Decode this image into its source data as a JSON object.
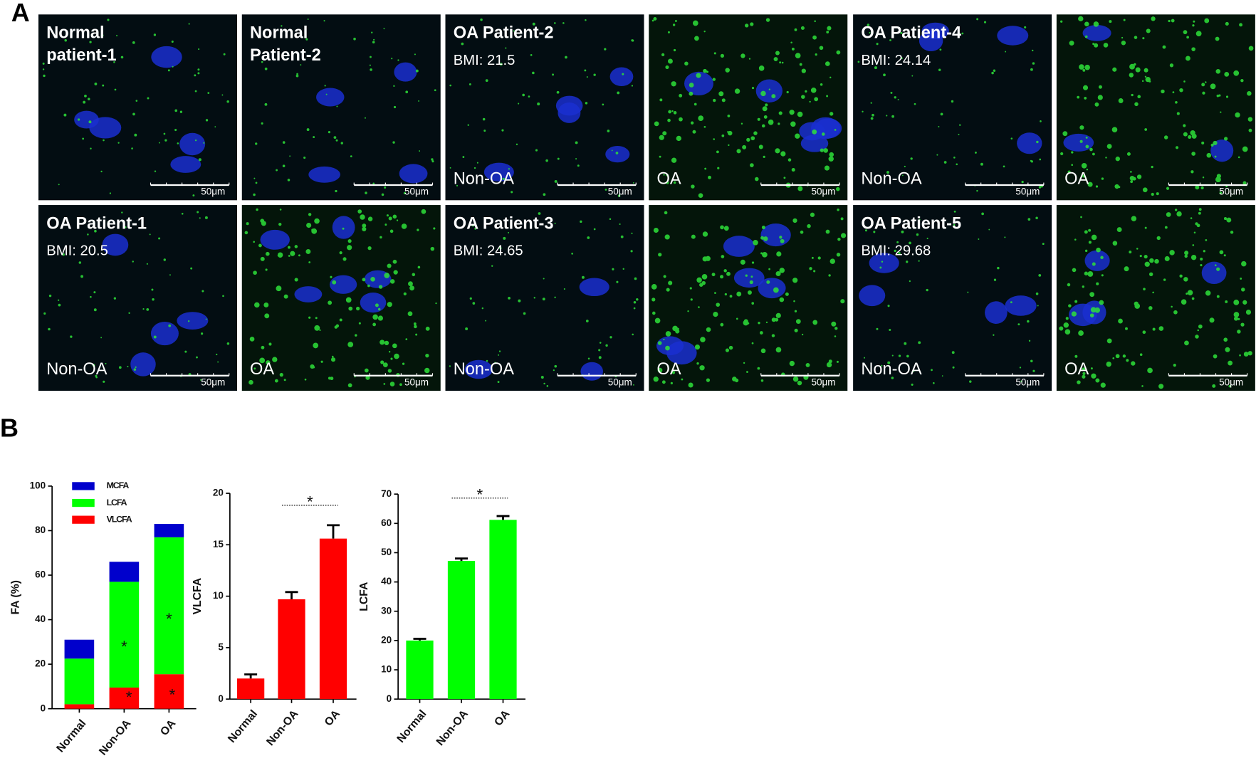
{
  "panel_labels": [
    "A",
    "B"
  ],
  "panel_a": {
    "tiles": [
      {
        "title": [
          "Normal",
          "patient-1"
        ],
        "scale": "50μm"
      },
      {
        "title": [
          "Normal",
          "Patient-2"
        ],
        "scale": "50μm"
      },
      {
        "title": [
          "OA Patient-2"
        ],
        "bmi": "BMI: 21.5",
        "group": "Non-OA",
        "scale": "50μm"
      },
      {
        "group": "OA",
        "scale": "50μm"
      },
      {
        "title": [
          "OA Patient-4"
        ],
        "bmi": "BMI: 24.14",
        "group": "Non-OA",
        "scale": "50μm"
      },
      {
        "group": "OA",
        "scale": "50μm"
      },
      {
        "title": [
          "OA Patient-1"
        ],
        "bmi": "BMI: 20.5",
        "group": "Non-OA",
        "scale": "50μm"
      },
      {
        "group": "OA",
        "scale": "50μm"
      },
      {
        "title": [
          "OA Patient-3"
        ],
        "bmi": "BMI: 24.65",
        "group": "Non-OA",
        "scale": "50μm"
      },
      {
        "group": "OA",
        "scale": "50μm"
      },
      {
        "title": [
          "OA Patient-5"
        ],
        "bmi": "BMI: 29.68",
        "group": "Non-OA",
        "scale": "50μm"
      },
      {
        "group": "OA",
        "scale": "50μm"
      }
    ]
  },
  "chart_data": [
    {
      "type": "stacked_bar",
      "ylabel": "FA (%)",
      "categories": [
        "Normal",
        "Non-OA",
        "OA"
      ],
      "series": [
        {
          "name": "VLCFA",
          "color": "#ff0000",
          "values": [
            2,
            9.5,
            15.5
          ]
        },
        {
          "name": "LCFA",
          "color": "#00ff00",
          "values": [
            20.5,
            47.5,
            61.5
          ]
        },
        {
          "name": "MCFA",
          "color": "#0000cc",
          "values": [
            8.5,
            9,
            6
          ]
        }
      ],
      "ylim": [
        0,
        100
      ],
      "yticks": [
        0,
        20,
        40,
        60,
        80,
        100
      ],
      "legend": "top-left",
      "annotations": [
        "*",
        "*",
        "*",
        "*"
      ]
    },
    {
      "type": "bar",
      "ylabel": "VLCFA",
      "categories": [
        "Normal",
        "Non-OA",
        "OA"
      ],
      "values": [
        2,
        9.7,
        15.6
      ],
      "errors": [
        0.4,
        0.7,
        1.3
      ],
      "color": "#ff0000",
      "ylim": [
        0,
        20
      ],
      "yticks": [
        0,
        5,
        10,
        15,
        20
      ],
      "annotations": [
        "*"
      ]
    },
    {
      "type": "bar",
      "ylabel": "LCFA",
      "categories": [
        "Normal",
        "Non-OA",
        "OA"
      ],
      "values": [
        20,
        47.2,
        61.2
      ],
      "errors": [
        0.6,
        0.8,
        1.3
      ],
      "color": "#00ff00",
      "ylim": [
        0,
        70
      ],
      "yticks": [
        0,
        10,
        20,
        30,
        40,
        50,
        60,
        70
      ],
      "annotations": [
        "*"
      ]
    }
  ]
}
